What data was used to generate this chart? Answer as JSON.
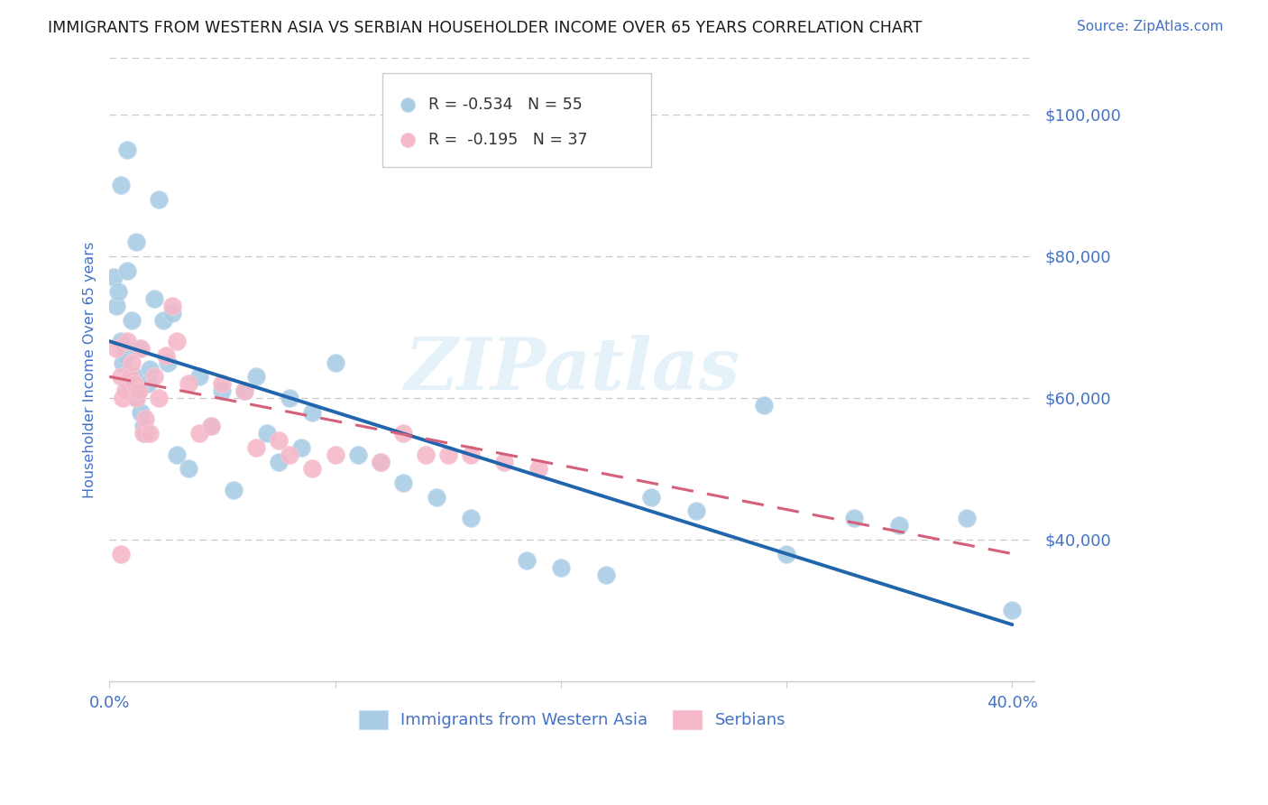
{
  "title": "IMMIGRANTS FROM WESTERN ASIA VS SERBIAN HOUSEHOLDER INCOME OVER 65 YEARS CORRELATION CHART",
  "source": "Source: ZipAtlas.com",
  "ylabel": "Householder Income Over 65 years",
  "watermark": "ZIPatlas",
  "legend_blue_r": "R = -0.534",
  "legend_blue_n": "N = 55",
  "legend_pink_r": "R =  -0.195",
  "legend_pink_n": "N = 37",
  "legend_label_blue": "Immigrants from Western Asia",
  "legend_label_pink": "Serbians",
  "blue_color": "#a8cce4",
  "pink_color": "#f4b8c8",
  "line_blue": "#2166ac",
  "line_pink": "#d4607a",
  "axis_color": "#4472c4",
  "title_color": "#333333",
  "grid_color": "#c8c8c8",
  "background_color": "#ffffff",
  "xlim": [
    0.0,
    0.41
  ],
  "ylim": [
    20000,
    108000
  ],
  "yticks": [
    40000,
    60000,
    80000,
    100000
  ],
  "xticks": [
    0.0,
    0.1,
    0.2,
    0.3,
    0.4
  ],
  "blue_line_x0": 0.0,
  "blue_line_y0": 68000,
  "blue_line_x1": 0.4,
  "blue_line_y1": 28000,
  "pink_line_x0": 0.0,
  "pink_line_y0": 63000,
  "pink_line_x1": 0.4,
  "pink_line_y1": 38000,
  "blue_x": [
    0.002,
    0.003,
    0.004,
    0.005,
    0.005,
    0.006,
    0.007,
    0.008,
    0.009,
    0.01,
    0.011,
    0.012,
    0.013,
    0.014,
    0.015,
    0.016,
    0.017,
    0.018,
    0.02,
    0.022,
    0.024,
    0.026,
    0.028,
    0.03,
    0.035,
    0.04,
    0.045,
    0.05,
    0.055,
    0.06,
    0.065,
    0.07,
    0.075,
    0.08,
    0.085,
    0.09,
    0.1,
    0.11,
    0.12,
    0.13,
    0.145,
    0.16,
    0.185,
    0.2,
    0.22,
    0.24,
    0.26,
    0.29,
    0.3,
    0.33,
    0.35,
    0.38,
    0.4,
    0.012,
    0.008
  ],
  "blue_y": [
    77000,
    73000,
    75000,
    68000,
    90000,
    65000,
    66000,
    78000,
    62000,
    71000,
    63000,
    60000,
    67000,
    58000,
    56000,
    55000,
    62000,
    64000,
    74000,
    88000,
    71000,
    65000,
    72000,
    52000,
    50000,
    63000,
    56000,
    61000,
    47000,
    61000,
    63000,
    55000,
    51000,
    60000,
    53000,
    58000,
    65000,
    52000,
    51000,
    48000,
    46000,
    43000,
    37000,
    36000,
    35000,
    46000,
    44000,
    59000,
    38000,
    43000,
    42000,
    43000,
    30000,
    82000,
    95000
  ],
  "pink_x": [
    0.003,
    0.005,
    0.006,
    0.007,
    0.008,
    0.009,
    0.01,
    0.011,
    0.012,
    0.013,
    0.014,
    0.015,
    0.016,
    0.018,
    0.02,
    0.022,
    0.025,
    0.028,
    0.03,
    0.035,
    0.04,
    0.045,
    0.05,
    0.06,
    0.065,
    0.075,
    0.08,
    0.09,
    0.1,
    0.12,
    0.13,
    0.14,
    0.15,
    0.16,
    0.175,
    0.19,
    0.005
  ],
  "pink_y": [
    67000,
    63000,
    60000,
    61000,
    68000,
    63000,
    65000,
    62000,
    60000,
    61000,
    67000,
    55000,
    57000,
    55000,
    63000,
    60000,
    66000,
    73000,
    68000,
    62000,
    55000,
    56000,
    62000,
    61000,
    53000,
    54000,
    52000,
    50000,
    52000,
    51000,
    55000,
    52000,
    52000,
    52000,
    51000,
    50000,
    38000
  ]
}
